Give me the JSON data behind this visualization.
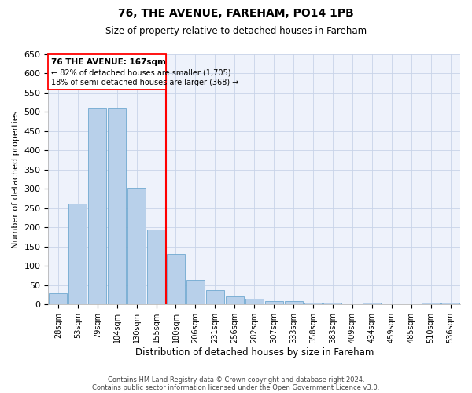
{
  "title": "76, THE AVENUE, FAREHAM, PO14 1PB",
  "subtitle": "Size of property relative to detached houses in Fareham",
  "xlabel": "Distribution of detached houses by size in Fareham",
  "ylabel": "Number of detached properties",
  "categories": [
    "28sqm",
    "53sqm",
    "79sqm",
    "104sqm",
    "130sqm",
    "155sqm",
    "180sqm",
    "206sqm",
    "231sqm",
    "256sqm",
    "282sqm",
    "307sqm",
    "333sqm",
    "358sqm",
    "383sqm",
    "409sqm",
    "434sqm",
    "459sqm",
    "485sqm",
    "510sqm",
    "536sqm"
  ],
  "values": [
    30,
    262,
    510,
    510,
    302,
    195,
    132,
    65,
    37,
    22,
    15,
    8,
    8,
    5,
    5,
    0,
    5,
    0,
    0,
    5,
    5
  ],
  "bar_color": "#b8d0ea",
  "bar_edge_color": "#6fa8d0",
  "red_line_index": 6,
  "ylim": [
    0,
    650
  ],
  "yticks": [
    0,
    50,
    100,
    150,
    200,
    250,
    300,
    350,
    400,
    450,
    500,
    550,
    600,
    650
  ],
  "annotation_title": "76 THE AVENUE: 167sqm",
  "annotation_line1": "← 82% of detached houses are smaller (1,705)",
  "annotation_line2": "18% of semi-detached houses are larger (368) →",
  "footer_line1": "Contains HM Land Registry data © Crown copyright and database right 2024.",
  "footer_line2": "Contains public sector information licensed under the Open Government Licence v3.0.",
  "bg_color": "#eef2fb",
  "grid_color": "#c8d4e8"
}
